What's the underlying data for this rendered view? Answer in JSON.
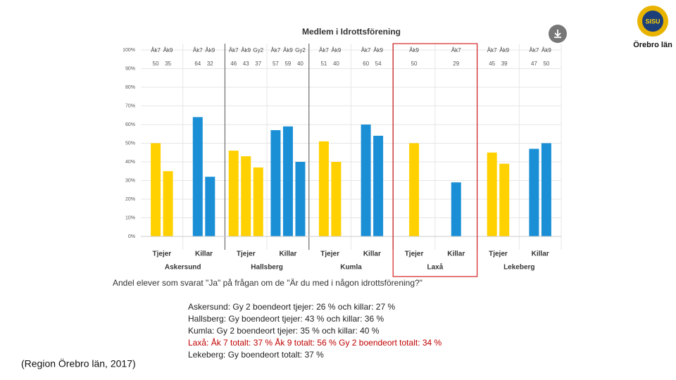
{
  "chart_data": {
    "type": "grouped-bar",
    "title": "Medlem i Idrottsförening",
    "ylim": [
      0,
      100
    ],
    "yticks": [
      {
        "value": 0,
        "label": "0%"
      },
      {
        "value": 10,
        "label": "10%"
      },
      {
        "value": 20,
        "label": "20%"
      },
      {
        "value": 30,
        "label": "30%"
      },
      {
        "value": 40,
        "label": "40%"
      },
      {
        "value": 50,
        "label": "50%"
      },
      {
        "value": 60,
        "label": "60%"
      },
      {
        "value": 70,
        "label": "70%"
      },
      {
        "value": 80,
        "label": "80%"
      },
      {
        "value": 90,
        "label": "90%"
      },
      {
        "value": 100,
        "label": "100%"
      }
    ],
    "grid": true,
    "highlight_group": 3,
    "groups": [
      {
        "name": "Askersund",
        "subgroups": [
          {
            "name": "Tjejer",
            "color": "#ffd100",
            "categories": [
              "Åk7",
              "Åk9"
            ],
            "values": [
              50,
              35
            ]
          },
          {
            "name": "Killar",
            "color": "#1a8fd6",
            "categories": [
              "Åk7",
              "Åk9"
            ],
            "values": [
              64,
              32
            ]
          }
        ]
      },
      {
        "name": "Hallsberg",
        "subgroups": [
          {
            "name": "Tjejer",
            "color": "#ffd100",
            "categories": [
              "Åk7",
              "Åk9",
              "Gy2"
            ],
            "values": [
              46,
              43,
              37
            ]
          },
          {
            "name": "Killar",
            "color": "#1a8fd6",
            "categories": [
              "Åk7",
              "Åk9",
              "Gy2"
            ],
            "values": [
              57,
              59,
              40
            ]
          }
        ]
      },
      {
        "name": "Kumla",
        "subgroups": [
          {
            "name": "Tjejer",
            "color": "#ffd100",
            "categories": [
              "Åk7",
              "Åk9"
            ],
            "values": [
              51,
              40
            ]
          },
          {
            "name": "Killar",
            "color": "#1a8fd6",
            "categories": [
              "Åk7",
              "Åk9"
            ],
            "values": [
              60,
              54
            ]
          }
        ]
      },
      {
        "name": "Laxå",
        "subgroups": [
          {
            "name": "Tjejer",
            "color": "#ffd100",
            "categories": [
              "Åk9"
            ],
            "values": [
              50
            ]
          },
          {
            "name": "Killar",
            "color": "#1a8fd6",
            "categories": [
              "Åk7"
            ],
            "values": [
              29
            ]
          }
        ]
      },
      {
        "name": "Lekeberg",
        "subgroups": [
          {
            "name": "Tjejer",
            "color": "#ffd100",
            "categories": [
              "Åk7",
              "Åk9"
            ],
            "values": [
              45,
              39
            ]
          },
          {
            "name": "Killar",
            "color": "#1a8fd6",
            "categories": [
              "Åk7",
              "Åk9"
            ],
            "values": [
              47,
              50
            ]
          }
        ]
      }
    ],
    "caption": "Andel elever som svarat \"Ja\" på frågan om de \"Är du med i någon idrottsförening?\""
  },
  "notes": [
    {
      "text": "Askersund: Gy 2 boendeort tjejer: 26 % och killar: 27 %",
      "color": "#222222"
    },
    {
      "text": "Hallsberg: Gy boendeort tjejer: 43 % och killar: 36 %",
      "color": "#222222"
    },
    {
      "text": "Kumla: Gy 2 boendeort tjejer: 35 % och killar: 40 %",
      "color": "#222222"
    },
    {
      "text": "Laxå: Åk 7 totalt: 37 % Åk 9 totalt: 56 % Gy 2 boendeort totalt: 34 %",
      "color": "#c00000"
    },
    {
      "text": "Lekeberg: Gy boendeort totalt: 37 %",
      "color": "#222222"
    }
  ],
  "source": "(Region Örebro län, 2017)",
  "logo": {
    "mark": "SISU",
    "text": "Örebro län"
  }
}
